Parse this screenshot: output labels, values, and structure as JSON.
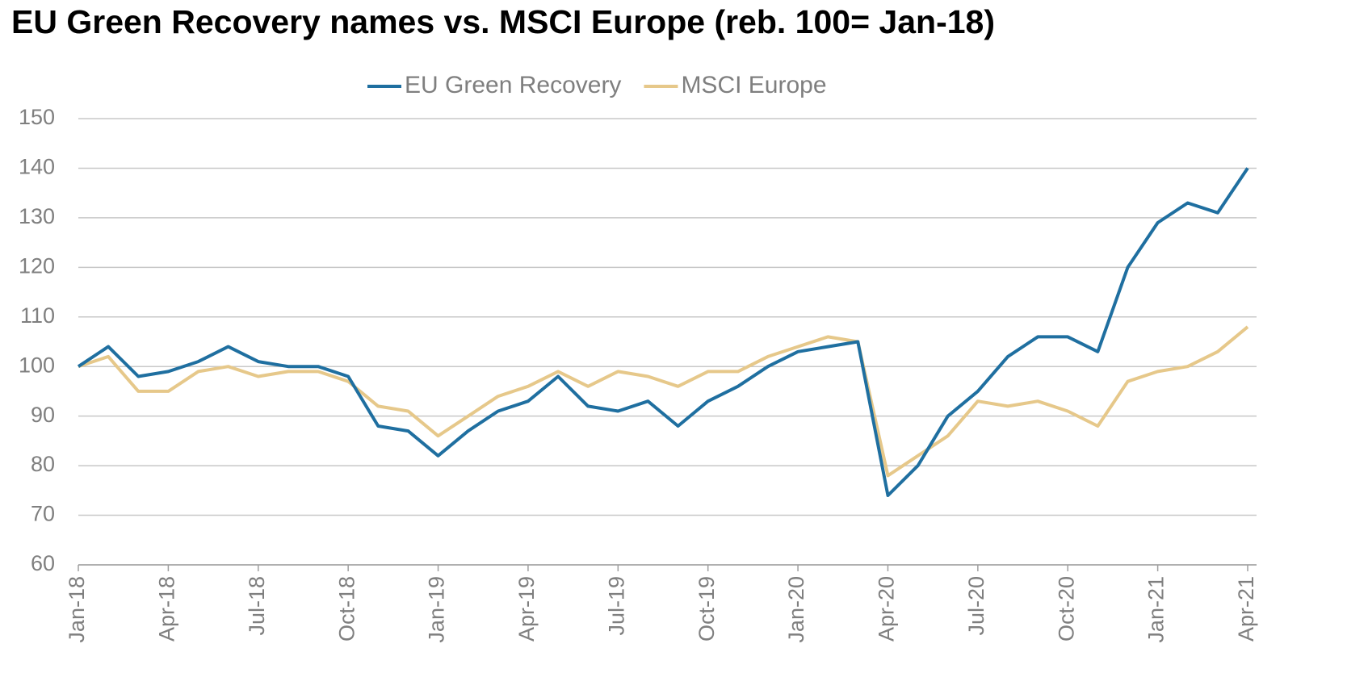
{
  "chart_data": {
    "type": "line",
    "title": "EU Green Recovery names vs. MSCI Europe (reb. 100= Jan-18)",
    "categories": [
      "Jan-18",
      null,
      null,
      "Apr-18",
      null,
      null,
      "Jul-18",
      null,
      null,
      "Oct-18",
      null,
      null,
      "Jan-19",
      null,
      null,
      "Apr-19",
      null,
      null,
      "Jul-19",
      null,
      null,
      "Oct-19",
      null,
      null,
      "Jan-20",
      null,
      null,
      "Apr-20",
      null,
      null,
      "Jul-20",
      null,
      null,
      "Oct-20",
      null,
      null,
      "Jan-21",
      null,
      null,
      "Apr-21"
    ],
    "series": [
      {
        "name": "EU Green Recovery",
        "color": "#1f6fa0",
        "values": [
          100,
          104,
          98,
          99,
          101,
          104,
          101,
          100,
          100,
          98,
          88,
          87,
          82,
          87,
          91,
          93,
          98,
          92,
          91,
          93,
          88,
          93,
          96,
          100,
          103,
          104,
          105,
          74,
          80,
          90,
          95,
          102,
          106,
          106,
          103,
          120,
          129,
          133,
          131,
          140
        ]
      },
      {
        "name": "MSCI Europe",
        "color": "#e6c88a",
        "values": [
          100,
          102,
          95,
          95,
          99,
          100,
          98,
          99,
          99,
          97,
          92,
          91,
          86,
          90,
          94,
          96,
          99,
          96,
          99,
          98,
          96,
          99,
          99,
          102,
          104,
          106,
          105,
          78,
          82,
          86,
          93,
          92,
          93,
          91,
          88,
          97,
          99,
          100,
          103,
          108
        ]
      }
    ],
    "ylim": [
      60,
      150
    ],
    "yticks": [
      60,
      70,
      80,
      90,
      100,
      110,
      120,
      130,
      140,
      150
    ],
    "grid": true,
    "legend": "top"
  }
}
